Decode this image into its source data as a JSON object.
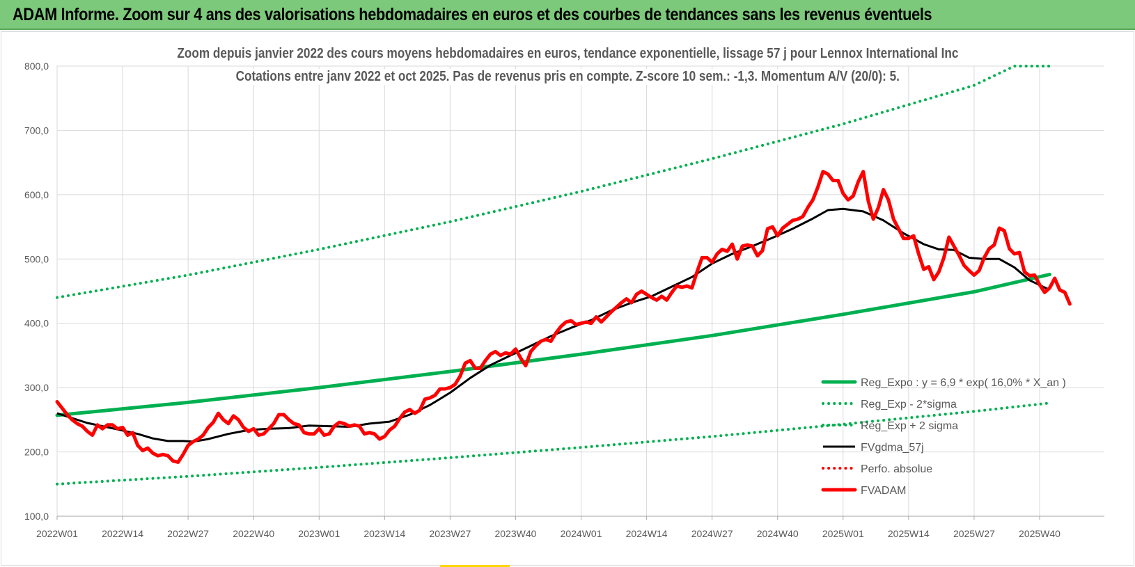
{
  "header": {
    "title": "ADAM Informe. Zoom sur 4 ans des valorisations hebdomadaires en euros et des courbes de tendances sans les revenus éventuels"
  },
  "chart_data": {
    "type": "line",
    "title_line1": "Zoom depuis janvier 2022 des cours moyens hebdomadaires en euros, tendance exponentielle, lissage 57 j pour Lennox International Inc",
    "title_line2": "Cotations entre janv 2022 et oct 2025. Pas de revenus pris en compte. Z-score 10 sem.: -1,3.  Momentum A/V (20/0): 5.",
    "xlabel": "",
    "ylabel": "",
    "ylim": [
      100,
      800
    ],
    "yticks": [
      100,
      200,
      300,
      400,
      500,
      600,
      700,
      800
    ],
    "ytick_labels": [
      "100,0",
      "200,0",
      "300,0",
      "400,0",
      "500,0",
      "600,0",
      "700,0",
      "800,0"
    ],
    "xlim": [
      0,
      197
    ],
    "xtick_positions": [
      0,
      13,
      26,
      39,
      52,
      65,
      78,
      91,
      104,
      117,
      130,
      143,
      156,
      169,
      182,
      195
    ],
    "xtick_labels": [
      "2022W01",
      "2022W14",
      "2022W27",
      "2022W40",
      "2023W01",
      "2023W14",
      "2023W27",
      "2023W40",
      "2024W01",
      "2024W14",
      "2024W27",
      "2024W40",
      "2025W01",
      "2025W14",
      "2025W27",
      "2025W40"
    ],
    "grid": true,
    "legend_position": "bottom-right",
    "series": [
      {
        "name": "Reg_Expo : y = 6,9 * exp( 16,0% * X_an )",
        "style": "solid-thick",
        "color": "#00b050",
        "points": [
          [
            0,
            257
          ],
          [
            26,
            277
          ],
          [
            52,
            300
          ],
          [
            78,
            325
          ],
          [
            104,
            352
          ],
          [
            130,
            381
          ],
          [
            156,
            414
          ],
          [
            182,
            449
          ],
          [
            197,
            476
          ]
        ]
      },
      {
        "name": "Reg_Exp - 2*sigma",
        "style": "dotted",
        "color": "#00b050",
        "points": [
          [
            0,
            150
          ],
          [
            26,
            162
          ],
          [
            52,
            176
          ],
          [
            78,
            191
          ],
          [
            104,
            207
          ],
          [
            130,
            224
          ],
          [
            156,
            243
          ],
          [
            182,
            263
          ],
          [
            197,
            276
          ]
        ]
      },
      {
        "name": "Reg_Exp + 2 sigma",
        "style": "dotted",
        "color": "#00b050",
        "points": [
          [
            0,
            440
          ],
          [
            26,
            475
          ],
          [
            52,
            515
          ],
          [
            78,
            558
          ],
          [
            104,
            605
          ],
          [
            130,
            656
          ],
          [
            156,
            710
          ],
          [
            182,
            770
          ],
          [
            190,
            800
          ],
          [
            197,
            800
          ]
        ]
      },
      {
        "name": "FVgdma_57j",
        "style": "solid",
        "color": "#000000",
        "points": [
          [
            0,
            260
          ],
          [
            6,
            245
          ],
          [
            12,
            235
          ],
          [
            16,
            228
          ],
          [
            19,
            221
          ],
          [
            22,
            217
          ],
          [
            25,
            217
          ],
          [
            27,
            216
          ],
          [
            30,
            220
          ],
          [
            34,
            228
          ],
          [
            38,
            234
          ],
          [
            42,
            236
          ],
          [
            46,
            237
          ],
          [
            50,
            241
          ],
          [
            54,
            240
          ],
          [
            58,
            239
          ],
          [
            62,
            244
          ],
          [
            66,
            247
          ],
          [
            70,
            258
          ],
          [
            74,
            273
          ],
          [
            78,
            292
          ],
          [
            82,
            315
          ],
          [
            86,
            335
          ],
          [
            90,
            350
          ],
          [
            94,
            365
          ],
          [
            98,
            380
          ],
          [
            102,
            393
          ],
          [
            106,
            405
          ],
          [
            110,
            420
          ],
          [
            114,
            432
          ],
          [
            118,
            442
          ],
          [
            122,
            457
          ],
          [
            126,
            472
          ],
          [
            130,
            493
          ],
          [
            134,
            508
          ],
          [
            138,
            520
          ],
          [
            142,
            533
          ],
          [
            146,
            547
          ],
          [
            150,
            563
          ],
          [
            153,
            576
          ],
          [
            156,
            578
          ],
          [
            160,
            574
          ],
          [
            164,
            560
          ],
          [
            168,
            540
          ],
          [
            172,
            523
          ],
          [
            175,
            515
          ],
          [
            178,
            514
          ],
          [
            181,
            502
          ],
          [
            184,
            500
          ],
          [
            187,
            500
          ],
          [
            190,
            487
          ],
          [
            193,
            467
          ],
          [
            197,
            452
          ]
        ]
      },
      {
        "name": "Perfo. absolue",
        "style": "dotted",
        "color": "#ff0000",
        "points": []
      },
      {
        "name": "FVADAM",
        "style": "solid-thick",
        "color": "#ff0000",
        "points": [
          [
            0,
            278
          ],
          [
            1,
            268
          ],
          [
            2,
            258
          ],
          [
            3,
            250
          ],
          [
            4,
            244
          ],
          [
            5,
            240
          ],
          [
            6,
            232
          ],
          [
            7,
            226
          ],
          [
            8,
            242
          ],
          [
            9,
            236
          ],
          [
            10,
            242
          ],
          [
            11,
            242
          ],
          [
            12,
            236
          ],
          [
            13,
            238
          ],
          [
            14,
            226
          ],
          [
            15,
            230
          ],
          [
            16,
            210
          ],
          [
            17,
            202
          ],
          [
            18,
            206
          ],
          [
            19,
            198
          ],
          [
            20,
            194
          ],
          [
            21,
            196
          ],
          [
            22,
            194
          ],
          [
            23,
            186
          ],
          [
            24,
            184
          ],
          [
            25,
            196
          ],
          [
            26,
            210
          ],
          [
            27,
            216
          ],
          [
            28,
            220
          ],
          [
            29,
            226
          ],
          [
            30,
            238
          ],
          [
            31,
            246
          ],
          [
            32,
            260
          ],
          [
            33,
            250
          ],
          [
            34,
            244
          ],
          [
            35,
            256
          ],
          [
            36,
            250
          ],
          [
            37,
            238
          ],
          [
            38,
            232
          ],
          [
            39,
            236
          ],
          [
            40,
            226
          ],
          [
            41,
            228
          ],
          [
            42,
            236
          ],
          [
            43,
            244
          ],
          [
            44,
            258
          ],
          [
            45,
            258
          ],
          [
            46,
            250
          ],
          [
            47,
            244
          ],
          [
            48,
            242
          ],
          [
            49,
            230
          ],
          [
            50,
            228
          ],
          [
            51,
            228
          ],
          [
            52,
            236
          ],
          [
            53,
            226
          ],
          [
            54,
            228
          ],
          [
            55,
            240
          ],
          [
            56,
            246
          ],
          [
            57,
            244
          ],
          [
            58,
            240
          ],
          [
            59,
            242
          ],
          [
            60,
            240
          ],
          [
            61,
            228
          ],
          [
            62,
            230
          ],
          [
            63,
            228
          ],
          [
            64,
            220
          ],
          [
            65,
            224
          ],
          [
            66,
            234
          ],
          [
            67,
            240
          ],
          [
            68,
            252
          ],
          [
            69,
            262
          ],
          [
            70,
            266
          ],
          [
            71,
            260
          ],
          [
            72,
            265
          ],
          [
            73,
            282
          ],
          [
            74,
            284
          ],
          [
            75,
            288
          ],
          [
            76,
            298
          ],
          [
            77,
            298
          ],
          [
            78,
            300
          ],
          [
            79,
            305
          ],
          [
            80,
            318
          ],
          [
            81,
            338
          ],
          [
            82,
            342
          ],
          [
            83,
            330
          ],
          [
            84,
            330
          ],
          [
            85,
            342
          ],
          [
            86,
            352
          ],
          [
            87,
            356
          ],
          [
            88,
            350
          ],
          [
            89,
            354
          ],
          [
            90,
            352
          ],
          [
            91,
            360
          ],
          [
            92,
            346
          ],
          [
            93,
            334
          ],
          [
            94,
            356
          ],
          [
            95,
            365
          ],
          [
            96,
            372
          ],
          [
            97,
            375
          ],
          [
            98,
            372
          ],
          [
            99,
            385
          ],
          [
            100,
            395
          ],
          [
            101,
            402
          ],
          [
            102,
            404
          ],
          [
            103,
            398
          ],
          [
            104,
            400
          ],
          [
            105,
            402
          ],
          [
            106,
            400
          ],
          [
            107,
            410
          ],
          [
            108,
            402
          ],
          [
            109,
            410
          ],
          [
            110,
            418
          ],
          [
            111,
            425
          ],
          [
            112,
            432
          ],
          [
            113,
            438
          ],
          [
            114,
            432
          ],
          [
            115,
            445
          ],
          [
            116,
            450
          ],
          [
            117,
            445
          ],
          [
            118,
            440
          ],
          [
            119,
            436
          ],
          [
            120,
            442
          ],
          [
            121,
            436
          ],
          [
            122,
            448
          ],
          [
            123,
            458
          ],
          [
            124,
            456
          ],
          [
            125,
            458
          ],
          [
            126,
            455
          ],
          [
            127,
            480
          ],
          [
            128,
            502
          ],
          [
            129,
            502
          ],
          [
            130,
            495
          ],
          [
            131,
            508
          ],
          [
            132,
            515
          ],
          [
            133,
            512
          ],
          [
            134,
            523
          ],
          [
            135,
            500
          ],
          [
            136,
            520
          ],
          [
            137,
            522
          ],
          [
            138,
            520
          ],
          [
            139,
            505
          ],
          [
            140,
            513
          ],
          [
            141,
            547
          ],
          [
            142,
            550
          ],
          [
            143,
            536
          ],
          [
            144,
            548
          ],
          [
            145,
            554
          ],
          [
            146,
            560
          ],
          [
            147,
            562
          ],
          [
            148,
            566
          ],
          [
            149,
            580
          ],
          [
            150,
            592
          ],
          [
            151,
            612
          ],
          [
            152,
            636
          ],
          [
            153,
            632
          ],
          [
            154,
            622
          ],
          [
            155,
            622
          ],
          [
            156,
            602
          ],
          [
            157,
            592
          ],
          [
            158,
            598
          ],
          [
            159,
            620
          ],
          [
            160,
            636
          ],
          [
            161,
            590
          ],
          [
            162,
            562
          ],
          [
            163,
            580
          ],
          [
            164,
            608
          ],
          [
            165,
            592
          ],
          [
            166,
            562
          ],
          [
            167,
            547
          ],
          [
            168,
            532
          ],
          [
            169,
            532
          ],
          [
            170,
            536
          ],
          [
            171,
            508
          ],
          [
            172,
            484
          ],
          [
            173,
            488
          ],
          [
            174,
            468
          ],
          [
            175,
            480
          ],
          [
            176,
            502
          ],
          [
            177,
            534
          ],
          [
            178,
            520
          ],
          [
            179,
            506
          ],
          [
            180,
            490
          ],
          [
            181,
            482
          ],
          [
            182,
            475
          ],
          [
            183,
            482
          ],
          [
            184,
            502
          ],
          [
            185,
            516
          ],
          [
            186,
            522
          ],
          [
            187,
            548
          ],
          [
            188,
            544
          ],
          [
            189,
            516
          ],
          [
            190,
            508
          ],
          [
            191,
            510
          ],
          [
            192,
            480
          ],
          [
            193,
            474
          ],
          [
            194,
            475
          ],
          [
            195,
            460
          ],
          [
            196,
            448
          ],
          [
            197,
            455
          ],
          [
            198,
            470
          ],
          [
            199,
            452
          ],
          [
            200,
            448
          ],
          [
            201,
            430
          ]
        ]
      }
    ]
  }
}
